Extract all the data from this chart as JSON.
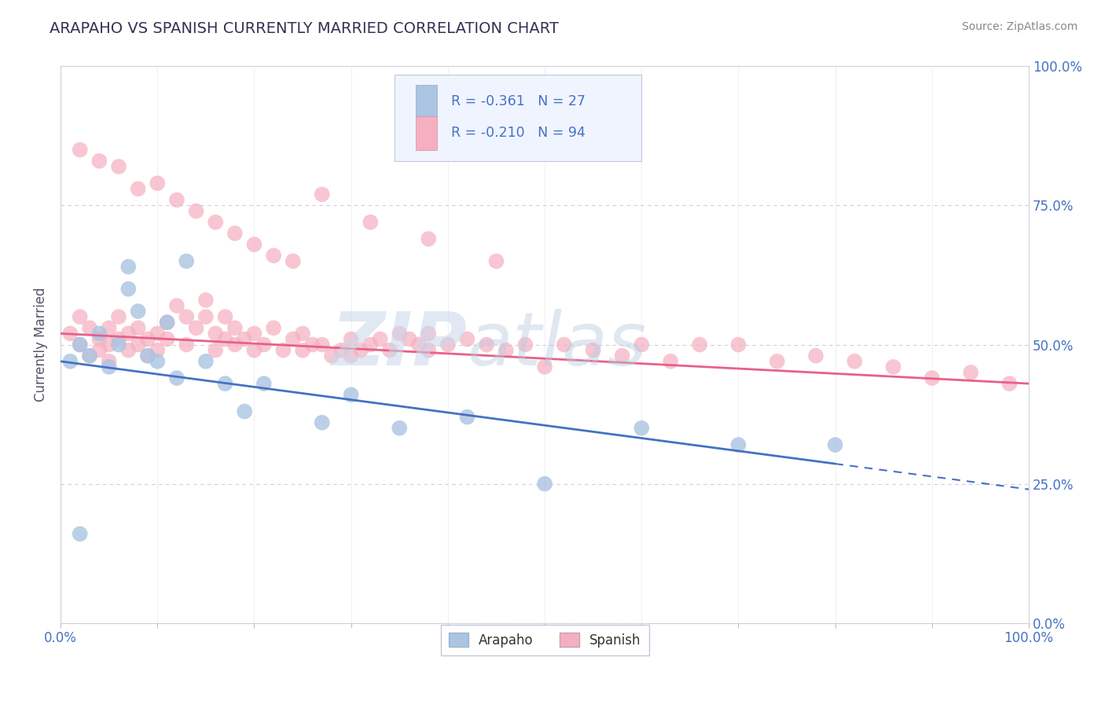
{
  "title": "ARAPAHO VS SPANISH CURRENTLY MARRIED CORRELATION CHART",
  "source_text": "Source: ZipAtlas.com",
  "ylabel": "Currently Married",
  "arapaho_label": "Arapaho",
  "spanish_label": "Spanish",
  "arapaho_R": -0.361,
  "arapaho_N": 27,
  "spanish_R": -0.21,
  "spanish_N": 94,
  "arapaho_color": "#aac4e2",
  "spanish_color": "#f5afc0",
  "arapaho_line_color": "#4472c4",
  "spanish_line_color": "#e8608a",
  "watermark_zip": "ZIP",
  "watermark_atlas": "atlas",
  "xlim": [
    0,
    100
  ],
  "ylim": [
    0,
    100
  ],
  "xticks": [
    0,
    10,
    20,
    30,
    40,
    50,
    60,
    70,
    80,
    90,
    100
  ],
  "yticks": [
    0,
    25,
    50,
    75,
    100
  ],
  "ytick_labels_right": [
    "0.0%",
    "25.0%",
    "50.0%",
    "75.0%",
    "100.0%"
  ],
  "background_color": "#ffffff",
  "grid_color": "#ccccdd",
  "title_color": "#333355",
  "axis_label_color": "#4472c4",
  "arapaho_line_x0": 0,
  "arapaho_line_y0": 47,
  "arapaho_line_x1": 100,
  "arapaho_line_y1": 24,
  "spanish_line_x0": 0,
  "spanish_line_y0": 52,
  "spanish_line_x1": 100,
  "spanish_line_y1": 43,
  "arapaho_solid_end": 80,
  "arapaho_x": [
    1,
    2,
    3,
    4,
    5,
    6,
    7,
    7,
    8,
    9,
    10,
    11,
    12,
    13,
    15,
    17,
    19,
    21,
    27,
    30,
    35,
    42,
    50,
    60,
    70,
    80,
    2
  ],
  "arapaho_y": [
    47,
    50,
    48,
    52,
    46,
    50,
    64,
    60,
    56,
    48,
    47,
    54,
    44,
    65,
    47,
    43,
    38,
    43,
    36,
    41,
    35,
    37,
    25,
    35,
    32,
    32,
    16
  ],
  "spanish_x": [
    1,
    2,
    2,
    3,
    3,
    4,
    4,
    5,
    5,
    5,
    6,
    6,
    7,
    7,
    8,
    8,
    9,
    9,
    10,
    10,
    11,
    11,
    12,
    13,
    13,
    14,
    15,
    15,
    16,
    16,
    17,
    17,
    18,
    18,
    19,
    20,
    20,
    21,
    22,
    23,
    24,
    25,
    25,
    26,
    27,
    28,
    29,
    30,
    30,
    31,
    32,
    33,
    34,
    35,
    36,
    37,
    38,
    38,
    40,
    42,
    44,
    46,
    48,
    50,
    52,
    55,
    58,
    60,
    63,
    66,
    70,
    74,
    78,
    82,
    86,
    90,
    94,
    98,
    2,
    4,
    6,
    8,
    10,
    12,
    14,
    16,
    18,
    20,
    22,
    24,
    27,
    32,
    38,
    45
  ],
  "spanish_y": [
    52,
    55,
    50,
    53,
    48,
    51,
    49,
    53,
    50,
    47,
    55,
    51,
    52,
    49,
    50,
    53,
    51,
    48,
    52,
    49,
    54,
    51,
    57,
    55,
    50,
    53,
    58,
    55,
    52,
    49,
    55,
    51,
    53,
    50,
    51,
    49,
    52,
    50,
    53,
    49,
    51,
    52,
    49,
    50,
    50,
    48,
    49,
    48,
    51,
    49,
    50,
    51,
    49,
    52,
    51,
    50,
    52,
    49,
    50,
    51,
    50,
    49,
    50,
    46,
    50,
    49,
    48,
    50,
    47,
    50,
    50,
    47,
    48,
    47,
    46,
    44,
    45,
    43,
    85,
    83,
    82,
    78,
    79,
    76,
    74,
    72,
    70,
    68,
    66,
    65,
    77,
    72,
    69,
    65
  ]
}
